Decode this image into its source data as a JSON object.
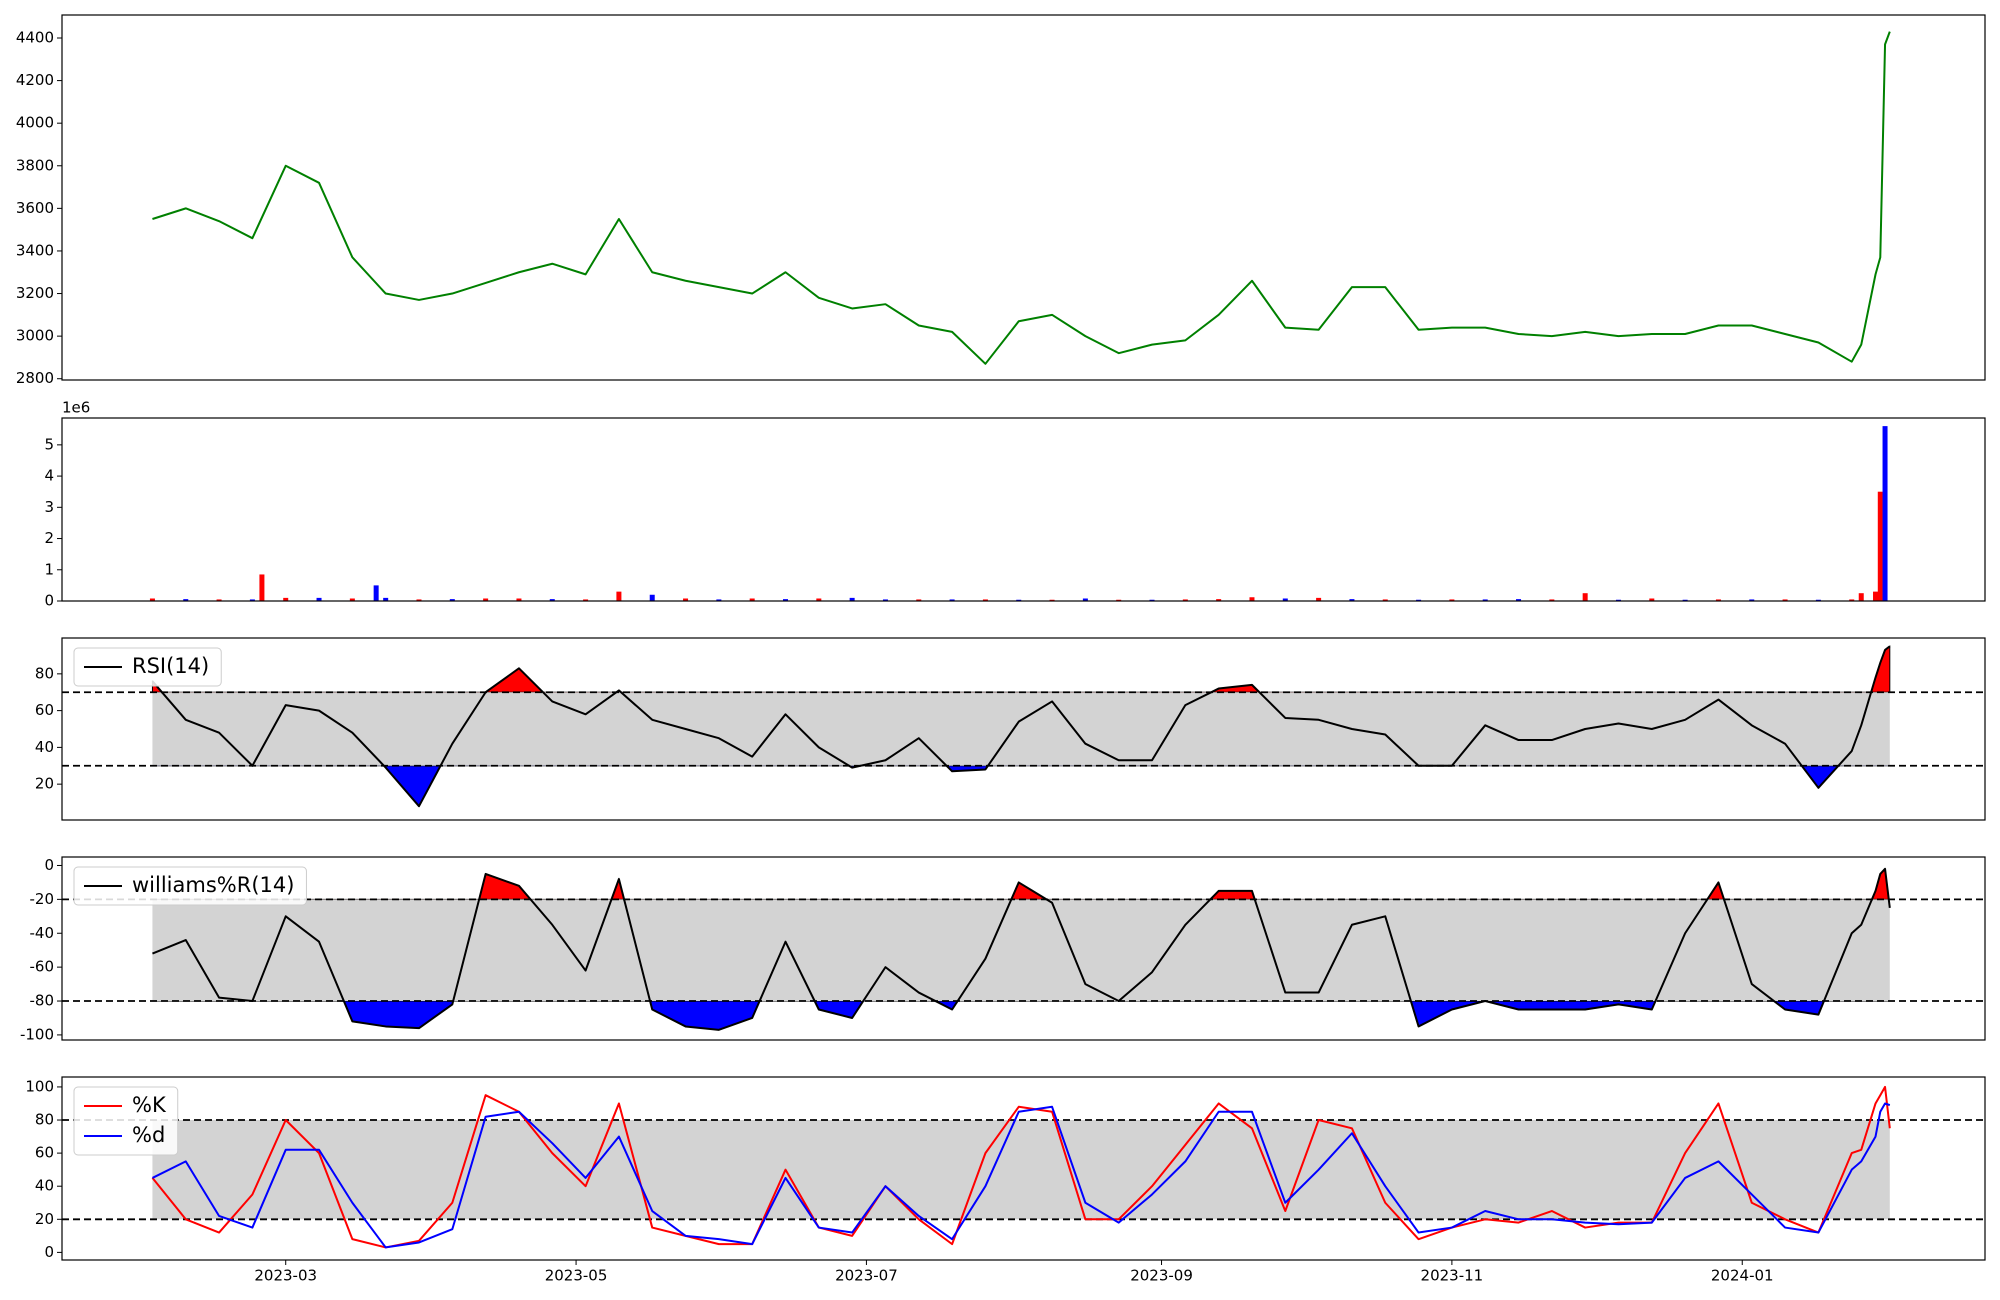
{
  "chart_data": [
    {
      "type": "line",
      "color": "green",
      "xlim": [
        "2023-01-13",
        "2024-02-21"
      ],
      "ylim": [
        2794,
        4508
      ],
      "yticks": [
        2800,
        3000,
        3200,
        3400,
        3600,
        3800,
        4000,
        4200,
        4400
      ],
      "x": [
        "2023-02-01",
        "2023-02-08",
        "2023-02-15",
        "2023-02-22",
        "2023-03-01",
        "2023-03-08",
        "2023-03-15",
        "2023-03-22",
        "2023-03-29",
        "2023-04-05",
        "2023-04-12",
        "2023-04-19",
        "2023-04-26",
        "2023-05-03",
        "2023-05-10",
        "2023-05-17",
        "2023-05-24",
        "2023-05-31",
        "2023-06-07",
        "2023-06-14",
        "2023-06-21",
        "2023-06-28",
        "2023-07-05",
        "2023-07-12",
        "2023-07-19",
        "2023-07-26",
        "2023-08-02",
        "2023-08-09",
        "2023-08-16",
        "2023-08-23",
        "2023-08-30",
        "2023-09-06",
        "2023-09-13",
        "2023-09-20",
        "2023-09-27",
        "2023-10-04",
        "2023-10-11",
        "2023-10-18",
        "2023-10-25",
        "2023-11-01",
        "2023-11-08",
        "2023-11-15",
        "2023-11-22",
        "2023-11-29",
        "2023-12-06",
        "2023-12-13",
        "2023-12-20",
        "2023-12-27",
        "2024-01-03",
        "2024-01-10",
        "2024-01-17",
        "2024-01-24",
        "2024-01-26",
        "2024-01-29",
        "2024-01-30",
        "2024-01-31",
        "2024-02-01"
      ],
      "values": [
        3550,
        3600,
        3540,
        3460,
        3800,
        3720,
        3370,
        3200,
        3170,
        3200,
        3250,
        3300,
        3340,
        3290,
        3550,
        3300,
        3260,
        3230,
        3200,
        3300,
        3180,
        3130,
        3150,
        3050,
        3020,
        2870,
        3070,
        3100,
        3000,
        2920,
        2960,
        2980,
        3100,
        3260,
        3040,
        3030,
        3230,
        3230,
        3030,
        3040,
        3040,
        3010,
        3000,
        3020,
        3000,
        3010,
        3010,
        3050,
        3050,
        3010,
        2970,
        2880,
        2960,
        3290,
        3370,
        4370,
        4430
      ]
    },
    {
      "type": "bar",
      "offset_label": "1e6",
      "xlim": [
        "2023-01-13",
        "2024-02-21"
      ],
      "ylim": [
        0,
        5.86
      ],
      "yticks": [
        0,
        1,
        2,
        3,
        4,
        5
      ],
      "x": [
        "2023-02-01",
        "2023-02-08",
        "2023-02-15",
        "2023-02-22",
        "2023-02-24",
        "2023-03-01",
        "2023-03-08",
        "2023-03-15",
        "2023-03-20",
        "2023-03-22",
        "2023-03-29",
        "2023-04-05",
        "2023-04-12",
        "2023-04-19",
        "2023-04-26",
        "2023-05-03",
        "2023-05-10",
        "2023-05-17",
        "2023-05-24",
        "2023-05-31",
        "2023-06-07",
        "2023-06-14",
        "2023-06-21",
        "2023-06-28",
        "2023-07-05",
        "2023-07-12",
        "2023-07-19",
        "2023-07-26",
        "2023-08-02",
        "2023-08-09",
        "2023-08-16",
        "2023-08-23",
        "2023-08-30",
        "2023-09-06",
        "2023-09-13",
        "2023-09-20",
        "2023-09-27",
        "2023-10-04",
        "2023-10-11",
        "2023-10-18",
        "2023-10-25",
        "2023-11-01",
        "2023-11-08",
        "2023-11-15",
        "2023-11-22",
        "2023-11-29",
        "2023-12-06",
        "2023-12-13",
        "2023-12-20",
        "2023-12-27",
        "2024-01-03",
        "2024-01-10",
        "2024-01-17",
        "2024-01-24",
        "2024-01-26",
        "2024-01-29",
        "2024-01-30",
        "2024-01-31"
      ],
      "values": [
        0.08,
        0.06,
        0.05,
        0.05,
        0.85,
        0.1,
        0.1,
        0.08,
        0.5,
        0.1,
        0.05,
        0.06,
        0.08,
        0.08,
        0.06,
        0.05,
        0.3,
        0.2,
        0.08,
        0.05,
        0.08,
        0.06,
        0.08,
        0.1,
        0.05,
        0.05,
        0.05,
        0.05,
        0.04,
        0.04,
        0.08,
        0.04,
        0.04,
        0.05,
        0.06,
        0.12,
        0.08,
        0.1,
        0.06,
        0.05,
        0.04,
        0.05,
        0.05,
        0.06,
        0.05,
        0.25,
        0.04,
        0.08,
        0.04,
        0.05,
        0.05,
        0.05,
        0.04,
        0.05,
        0.25,
        0.3,
        3.5,
        5.6
      ],
      "colors": [
        "red",
        "blue",
        "red",
        "blue",
        "red",
        "red",
        "blue",
        "red",
        "blue",
        "blue",
        "red",
        "blue",
        "red",
        "red",
        "blue",
        "red",
        "red",
        "blue",
        "red",
        "blue",
        "red",
        "blue",
        "red",
        "blue",
        "blue",
        "red",
        "blue",
        "red",
        "blue",
        "red",
        "blue",
        "red",
        "blue",
        "red",
        "red",
        "red",
        "blue",
        "red",
        "blue",
        "red",
        "blue",
        "red",
        "blue",
        "blue",
        "red",
        "red",
        "blue",
        "red",
        "blue",
        "red",
        "blue",
        "red",
        "blue",
        "red",
        "red",
        "red",
        "red",
        "blue"
      ]
    },
    {
      "type": "line",
      "legend": "upper left",
      "bands": [
        30,
        70
      ],
      "band_fill": "lightgray",
      "fill_above_color": "red",
      "fill_below_color": "blue",
      "xlim": [
        "2023-01-13",
        "2024-02-21"
      ],
      "ylim": [
        0.5,
        99.5
      ],
      "yticks": [
        20,
        40,
        60,
        80
      ],
      "x": [
        "2023-02-01",
        "2023-02-08",
        "2023-02-15",
        "2023-02-22",
        "2023-03-01",
        "2023-03-08",
        "2023-03-15",
        "2023-03-22",
        "2023-03-29",
        "2023-04-05",
        "2023-04-12",
        "2023-04-19",
        "2023-04-26",
        "2023-05-03",
        "2023-05-10",
        "2023-05-17",
        "2023-05-24",
        "2023-05-31",
        "2023-06-07",
        "2023-06-14",
        "2023-06-21",
        "2023-06-28",
        "2023-07-05",
        "2023-07-12",
        "2023-07-19",
        "2023-07-26",
        "2023-08-02",
        "2023-08-09",
        "2023-08-16",
        "2023-08-23",
        "2023-08-30",
        "2023-09-06",
        "2023-09-13",
        "2023-09-20",
        "2023-09-27",
        "2023-10-04",
        "2023-10-11",
        "2023-10-18",
        "2023-10-25",
        "2023-11-01",
        "2023-11-08",
        "2023-11-15",
        "2023-11-22",
        "2023-11-29",
        "2023-12-06",
        "2023-12-13",
        "2023-12-20",
        "2023-12-27",
        "2024-01-03",
        "2024-01-10",
        "2024-01-17",
        "2024-01-24",
        "2024-01-26",
        "2024-01-29",
        "2024-01-30",
        "2024-01-31",
        "2024-02-01"
      ],
      "series": [
        {
          "name": "RSI(14)",
          "color": "black",
          "values": [
            76,
            55,
            48,
            30,
            63,
            60,
            48,
            29,
            8,
            42,
            70,
            83,
            65,
            58,
            71,
            55,
            50,
            45,
            35,
            58,
            40,
            29,
            33,
            45,
            27,
            28,
            54,
            65,
            42,
            33,
            33,
            63,
            72,
            74,
            56,
            55,
            50,
            47,
            30,
            30,
            52,
            44,
            44,
            50,
            53,
            50,
            55,
            66,
            52,
            42,
            18,
            38,
            52,
            78,
            86,
            93,
            95
          ]
        }
      ]
    },
    {
      "type": "line",
      "legend": "upper left",
      "bands": [
        -80,
        -20
      ],
      "band_fill": "lightgray",
      "fill_above_color": "red",
      "fill_below_color": "blue",
      "xlim": [
        "2023-01-13",
        "2024-02-21"
      ],
      "ylim": [
        -103,
        5
      ],
      "yticks": [
        -100,
        -80,
        -60,
        -40,
        -20,
        0
      ],
      "x": [
        "2023-02-01",
        "2023-02-08",
        "2023-02-15",
        "2023-02-22",
        "2023-03-01",
        "2023-03-08",
        "2023-03-15",
        "2023-03-22",
        "2023-03-29",
        "2023-04-05",
        "2023-04-12",
        "2023-04-19",
        "2023-04-26",
        "2023-05-03",
        "2023-05-10",
        "2023-05-17",
        "2023-05-24",
        "2023-05-31",
        "2023-06-07",
        "2023-06-14",
        "2023-06-21",
        "2023-06-28",
        "2023-07-05",
        "2023-07-12",
        "2023-07-19",
        "2023-07-26",
        "2023-08-02",
        "2023-08-09",
        "2023-08-16",
        "2023-08-23",
        "2023-08-30",
        "2023-09-06",
        "2023-09-13",
        "2023-09-20",
        "2023-09-27",
        "2023-10-04",
        "2023-10-11",
        "2023-10-18",
        "2023-10-25",
        "2023-11-01",
        "2023-11-08",
        "2023-11-15",
        "2023-11-22",
        "2023-11-29",
        "2023-12-06",
        "2023-12-13",
        "2023-12-20",
        "2023-12-27",
        "2024-01-03",
        "2024-01-10",
        "2024-01-17",
        "2024-01-24",
        "2024-01-26",
        "2024-01-29",
        "2024-01-30",
        "2024-01-31",
        "2024-02-01"
      ],
      "series": [
        {
          "name": "williams%R(14)",
          "color": "black",
          "values": [
            -52,
            -44,
            -78,
            -80,
            -30,
            -45,
            -92,
            -95,
            -96,
            -82,
            -5,
            -12,
            -35,
            -62,
            -8,
            -85,
            -95,
            -97,
            -90,
            -45,
            -85,
            -90,
            -60,
            -75,
            -85,
            -55,
            -10,
            -22,
            -70,
            -80,
            -63,
            -35,
            -15,
            -15,
            -75,
            -75,
            -35,
            -30,
            -95,
            -85,
            -80,
            -85,
            -85,
            -85,
            -82,
            -85,
            -40,
            -10,
            -70,
            -85,
            -88,
            -40,
            -35,
            -15,
            -5,
            -2,
            -25
          ]
        }
      ]
    },
    {
      "type": "line",
      "legend": "upper left",
      "bands": [
        20,
        80
      ],
      "band_fill": "lightgray",
      "xlim": [
        "2023-01-13",
        "2024-02-21"
      ],
      "ylim": [
        -4.6,
        106
      ],
      "yticks": [
        0,
        20,
        40,
        60,
        80,
        100
      ],
      "xticks": [
        {
          "value": "2023-03-01",
          "label": "2023-03"
        },
        {
          "value": "2023-05-01",
          "label": "2023-05"
        },
        {
          "value": "2023-07-01",
          "label": "2023-07"
        },
        {
          "value": "2023-09-01",
          "label": "2023-09"
        },
        {
          "value": "2023-11-01",
          "label": "2023-11"
        },
        {
          "value": "2024-01-01",
          "label": "2024-01"
        }
      ],
      "x": [
        "2023-02-01",
        "2023-02-08",
        "2023-02-15",
        "2023-02-22",
        "2023-03-01",
        "2023-03-08",
        "2023-03-15",
        "2023-03-22",
        "2023-03-29",
        "2023-04-05",
        "2023-04-12",
        "2023-04-19",
        "2023-04-26",
        "2023-05-03",
        "2023-05-10",
        "2023-05-17",
        "2023-05-24",
        "2023-05-31",
        "2023-06-07",
        "2023-06-14",
        "2023-06-21",
        "2023-06-28",
        "2023-07-05",
        "2023-07-12",
        "2023-07-19",
        "2023-07-26",
        "2023-08-02",
        "2023-08-09",
        "2023-08-16",
        "2023-08-23",
        "2023-08-30",
        "2023-09-06",
        "2023-09-13",
        "2023-09-20",
        "2023-09-27",
        "2023-10-04",
        "2023-10-11",
        "2023-10-18",
        "2023-10-25",
        "2023-11-01",
        "2023-11-08",
        "2023-11-15",
        "2023-11-22",
        "2023-11-29",
        "2023-12-06",
        "2023-12-13",
        "2023-12-20",
        "2023-12-27",
        "2024-01-03",
        "2024-01-10",
        "2024-01-17",
        "2024-01-24",
        "2024-01-26",
        "2024-01-29",
        "2024-01-30",
        "2024-01-31",
        "2024-02-01"
      ],
      "series": [
        {
          "name": "%K",
          "color": "red",
          "values": [
            45,
            20,
            12,
            35,
            80,
            60,
            8,
            3,
            7,
            30,
            95,
            85,
            60,
            40,
            90,
            15,
            10,
            5,
            5,
            50,
            15,
            10,
            40,
            20,
            5,
            60,
            88,
            85,
            20,
            20,
            40,
            65,
            90,
            75,
            25,
            80,
            75,
            30,
            8,
            15,
            20,
            18,
            25,
            15,
            18,
            18,
            60,
            90,
            30,
            20,
            12,
            60,
            62,
            90,
            95,
            100,
            75
          ]
        },
        {
          "name": "%d",
          "color": "blue",
          "values": [
            45,
            55,
            22,
            15,
            62,
            62,
            30,
            3,
            6,
            14,
            82,
            85,
            66,
            45,
            70,
            25,
            10,
            8,
            5,
            45,
            15,
            12,
            40,
            22,
            8,
            40,
            85,
            88,
            30,
            18,
            35,
            55,
            85,
            85,
            30,
            50,
            72,
            40,
            12,
            15,
            25,
            20,
            20,
            18,
            17,
            18,
            45,
            55,
            35,
            15,
            12,
            50,
            55,
            70,
            85,
            90,
            89
          ]
        }
      ]
    }
  ]
}
